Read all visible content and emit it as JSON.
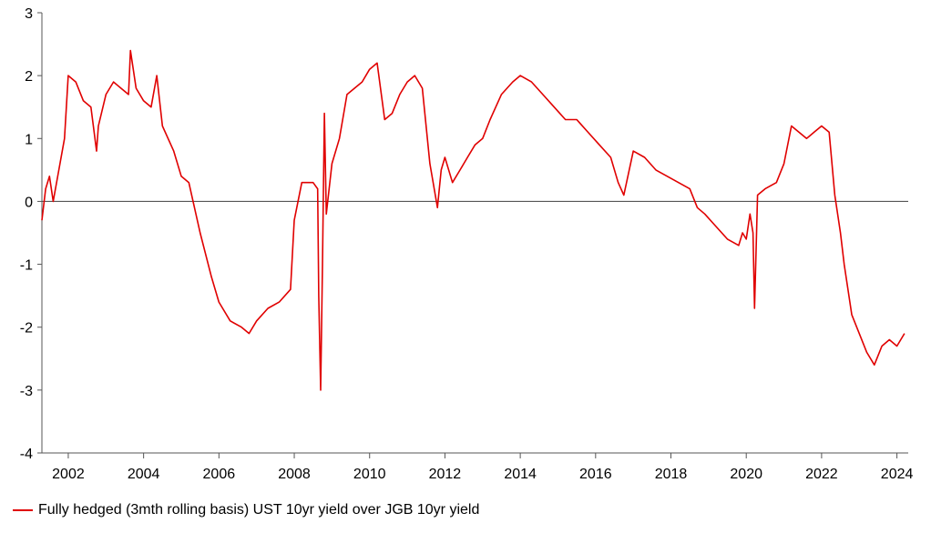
{
  "chart_data": {
    "type": "line",
    "title": "",
    "xlabel": "",
    "ylabel": "",
    "xlim": [
      2001.3,
      2024.3
    ],
    "ylim": [
      -4,
      3
    ],
    "x_ticks": [
      2002,
      2004,
      2006,
      2008,
      2010,
      2012,
      2014,
      2016,
      2018,
      2020,
      2022,
      2024
    ],
    "x_tick_labels": [
      "2002",
      "2004",
      "2006",
      "2008",
      "2010",
      "2012",
      "2014",
      "2016",
      "2018",
      "2020",
      "2022",
      "2024"
    ],
    "y_ticks": [
      3,
      2,
      1,
      0,
      -1,
      -2,
      -3,
      -4
    ],
    "y_tick_labels": [
      "3",
      "2",
      "1",
      "0",
      "-1",
      "-2",
      "-3",
      "-4"
    ],
    "zero_line": true,
    "grid": false,
    "legend_position": "bottom-left",
    "series": [
      {
        "name": "Fully hedged (3mth rolling basis) UST 10yr yield over JGB 10yr yield",
        "color": "#e00000",
        "x": [
          2001.3,
          2001.4,
          2001.5,
          2001.6,
          2001.75,
          2001.9,
          2002.0,
          2002.2,
          2002.4,
          2002.6,
          2002.75,
          2002.8,
          2003.0,
          2003.2,
          2003.4,
          2003.6,
          2003.65,
          2003.8,
          2004.0,
          2004.2,
          2004.35,
          2004.5,
          2004.8,
          2005.0,
          2005.2,
          2005.5,
          2005.8,
          2006.0,
          2006.3,
          2006.6,
          2006.8,
          2007.0,
          2007.3,
          2007.6,
          2007.9,
          2008.0,
          2008.2,
          2008.5,
          2008.62,
          2008.65,
          2008.7,
          2008.75,
          2008.8,
          2008.85,
          2009.0,
          2009.2,
          2009.4,
          2009.6,
          2009.8,
          2010.0,
          2010.2,
          2010.4,
          2010.6,
          2010.8,
          2011.0,
          2011.2,
          2011.4,
          2011.6,
          2011.8,
          2011.9,
          2012.0,
          2012.2,
          2012.4,
          2012.6,
          2012.8,
          2013.0,
          2013.2,
          2013.5,
          2013.8,
          2014.0,
          2014.3,
          2014.6,
          2014.9,
          2015.2,
          2015.5,
          2015.8,
          2016.1,
          2016.4,
          2016.6,
          2016.75,
          2017.0,
          2017.3,
          2017.6,
          2017.9,
          2018.2,
          2018.5,
          2018.7,
          2018.9,
          2019.2,
          2019.5,
          2019.8,
          2019.9,
          2020.0,
          2020.1,
          2020.18,
          2020.22,
          2020.3,
          2020.5,
          2020.8,
          2021.0,
          2021.2,
          2021.4,
          2021.6,
          2021.8,
          2022.0,
          2022.2,
          2022.35,
          2022.5,
          2022.6,
          2022.8,
          2023.0,
          2023.2,
          2023.4,
          2023.6,
          2023.8,
          2024.0,
          2024.2
        ],
        "values": [
          -0.3,
          0.2,
          0.4,
          0.0,
          0.5,
          1.0,
          2.0,
          1.9,
          1.6,
          1.5,
          0.8,
          1.2,
          1.7,
          1.9,
          1.8,
          1.7,
          2.4,
          1.8,
          1.6,
          1.5,
          2.0,
          1.2,
          0.8,
          0.4,
          0.3,
          -0.5,
          -1.2,
          -1.6,
          -1.9,
          -2.0,
          -2.1,
          -1.9,
          -1.7,
          -1.6,
          -1.4,
          -0.3,
          0.3,
          0.3,
          0.2,
          -1.5,
          -3.0,
          -1.0,
          1.4,
          -0.2,
          0.6,
          1.0,
          1.7,
          1.8,
          1.9,
          2.1,
          2.2,
          1.3,
          1.4,
          1.7,
          1.9,
          2.0,
          1.8,
          0.6,
          -0.1,
          0.5,
          0.7,
          0.3,
          0.5,
          0.7,
          0.9,
          1.0,
          1.3,
          1.7,
          1.9,
          2.0,
          1.9,
          1.7,
          1.5,
          1.3,
          1.3,
          1.1,
          0.9,
          0.7,
          0.3,
          0.1,
          0.8,
          0.7,
          0.5,
          0.4,
          0.3,
          0.2,
          -0.1,
          -0.2,
          -0.4,
          -0.6,
          -0.7,
          -0.5,
          -0.6,
          -0.2,
          -0.5,
          -1.7,
          0.1,
          0.2,
          0.3,
          0.6,
          1.2,
          1.1,
          1.0,
          1.1,
          1.2,
          1.1,
          0.1,
          -0.5,
          -1.0,
          -1.8,
          -2.1,
          -2.4,
          -2.6,
          -2.3,
          -2.2,
          -2.3,
          -2.1
        ]
      }
    ]
  },
  "legend": {
    "label": "Fully hedged (3mth rolling basis) UST 10yr yield over JGB 10yr yield"
  }
}
